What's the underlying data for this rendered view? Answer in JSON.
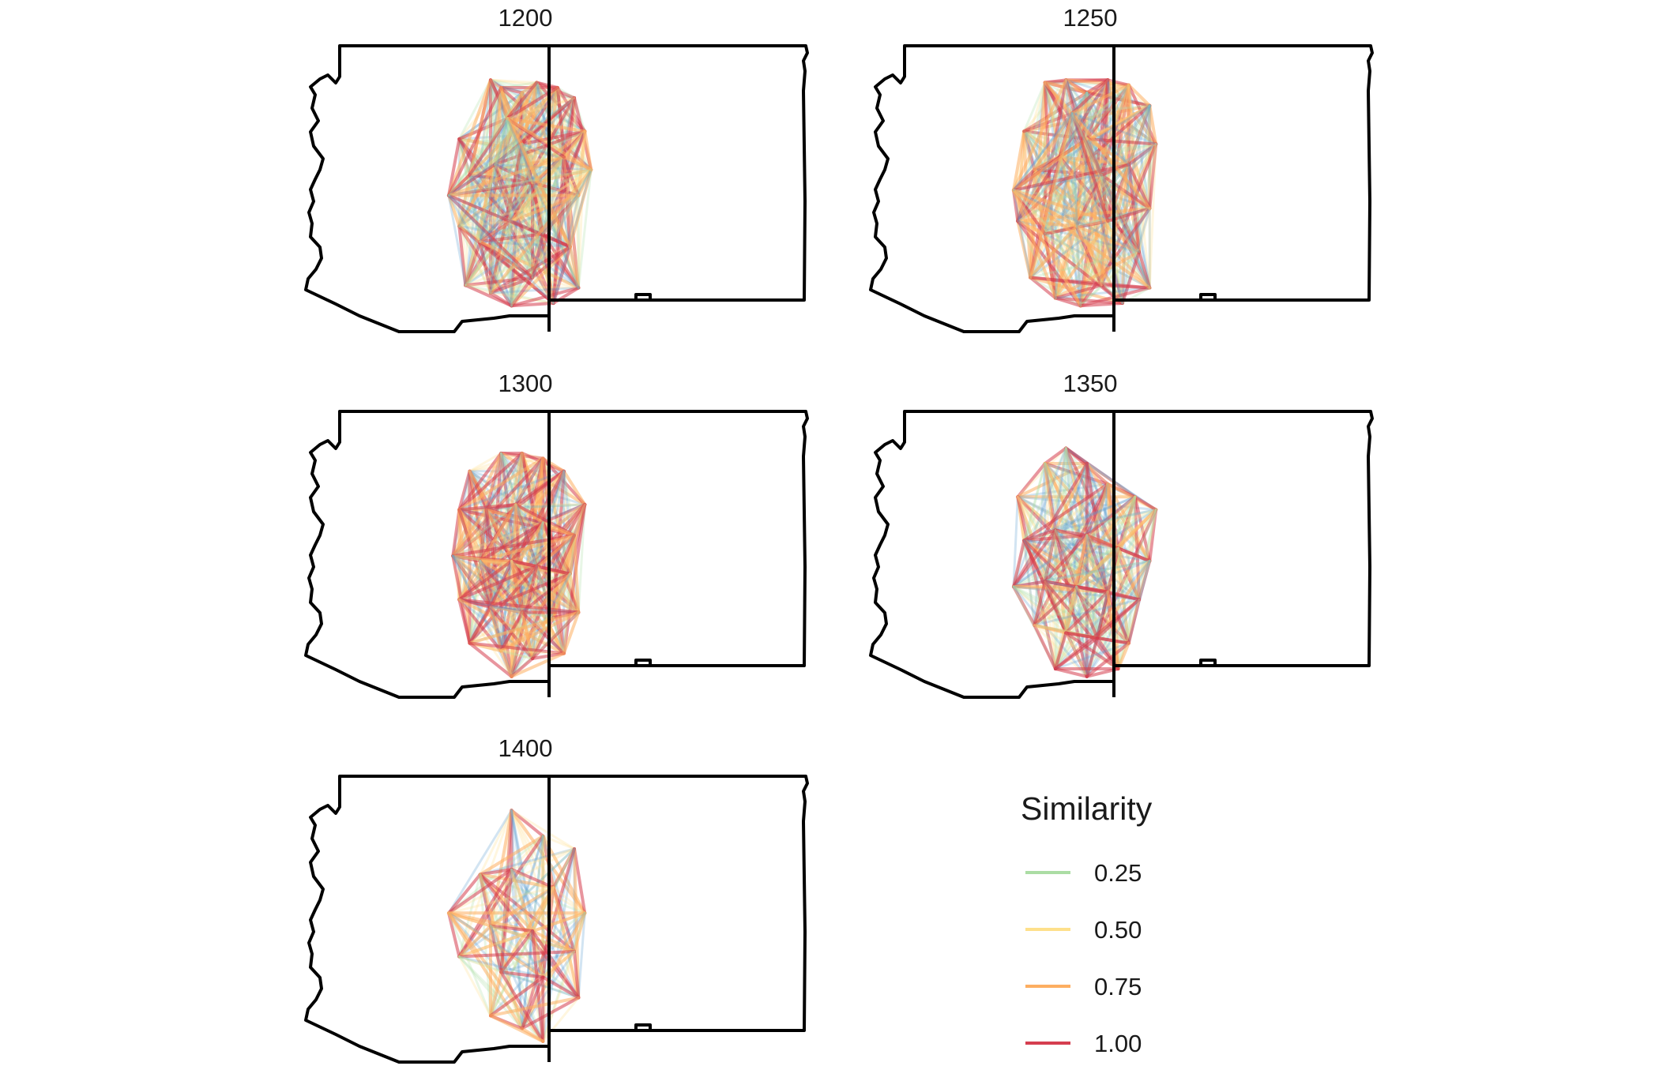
{
  "panels": [
    {
      "title": "1200",
      "sites": [
        [
          0.25,
          0.28
        ],
        [
          0.4,
          0.05
        ],
        [
          0.45,
          0.08
        ],
        [
          0.55,
          0.1
        ],
        [
          0.62,
          0.06
        ],
        [
          0.72,
          0.08
        ],
        [
          0.8,
          0.12
        ],
        [
          0.85,
          0.25
        ],
        [
          0.3,
          0.42
        ],
        [
          0.42,
          0.38
        ],
        [
          0.55,
          0.3
        ],
        [
          0.6,
          0.45
        ],
        [
          0.75,
          0.35
        ],
        [
          0.82,
          0.5
        ],
        [
          0.25,
          0.62
        ],
        [
          0.35,
          0.68
        ],
        [
          0.5,
          0.6
        ],
        [
          0.65,
          0.65
        ],
        [
          0.78,
          0.7
        ],
        [
          0.28,
          0.85
        ],
        [
          0.4,
          0.88
        ],
        [
          0.5,
          0.93
        ],
        [
          0.6,
          0.82
        ],
        [
          0.7,
          0.92
        ],
        [
          0.82,
          0.86
        ],
        [
          0.2,
          0.5
        ],
        [
          0.88,
          0.4
        ],
        [
          0.48,
          0.2
        ]
      ]
    },
    {
      "title": "1250",
      "sites": [
        [
          0.25,
          0.25
        ],
        [
          0.35,
          0.06
        ],
        [
          0.45,
          0.05
        ],
        [
          0.55,
          0.1
        ],
        [
          0.65,
          0.05
        ],
        [
          0.75,
          0.07
        ],
        [
          0.85,
          0.15
        ],
        [
          0.88,
          0.3
        ],
        [
          0.3,
          0.4
        ],
        [
          0.42,
          0.35
        ],
        [
          0.55,
          0.28
        ],
        [
          0.62,
          0.42
        ],
        [
          0.75,
          0.38
        ],
        [
          0.85,
          0.55
        ],
        [
          0.22,
          0.6
        ],
        [
          0.35,
          0.65
        ],
        [
          0.5,
          0.62
        ],
        [
          0.65,
          0.6
        ],
        [
          0.8,
          0.72
        ],
        [
          0.28,
          0.82
        ],
        [
          0.4,
          0.9
        ],
        [
          0.52,
          0.93
        ],
        [
          0.62,
          0.85
        ],
        [
          0.72,
          0.92
        ],
        [
          0.85,
          0.86
        ],
        [
          0.2,
          0.48
        ],
        [
          0.48,
          0.18
        ]
      ]
    },
    {
      "title": "1300",
      "sites": [
        [
          0.3,
          0.15
        ],
        [
          0.45,
          0.08
        ],
        [
          0.55,
          0.08
        ],
        [
          0.65,
          0.1
        ],
        [
          0.75,
          0.15
        ],
        [
          0.85,
          0.28
        ],
        [
          0.25,
          0.3
        ],
        [
          0.38,
          0.3
        ],
        [
          0.52,
          0.28
        ],
        [
          0.65,
          0.35
        ],
        [
          0.8,
          0.4
        ],
        [
          0.22,
          0.48
        ],
        [
          0.35,
          0.5
        ],
        [
          0.5,
          0.5
        ],
        [
          0.62,
          0.52
        ],
        [
          0.78,
          0.55
        ],
        [
          0.25,
          0.65
        ],
        [
          0.4,
          0.68
        ],
        [
          0.55,
          0.7
        ],
        [
          0.7,
          0.72
        ],
        [
          0.82,
          0.7
        ],
        [
          0.3,
          0.82
        ],
        [
          0.45,
          0.85
        ],
        [
          0.6,
          0.88
        ],
        [
          0.75,
          0.86
        ],
        [
          0.5,
          0.95
        ]
      ]
    },
    {
      "title": "1350",
      "sites": [
        [
          0.22,
          0.25
        ],
        [
          0.35,
          0.12
        ],
        [
          0.45,
          0.06
        ],
        [
          0.55,
          0.12
        ],
        [
          0.65,
          0.2
        ],
        [
          0.78,
          0.25
        ],
        [
          0.88,
          0.3
        ],
        [
          0.25,
          0.42
        ],
        [
          0.4,
          0.38
        ],
        [
          0.55,
          0.4
        ],
        [
          0.7,
          0.45
        ],
        [
          0.85,
          0.5
        ],
        [
          0.2,
          0.6
        ],
        [
          0.35,
          0.58
        ],
        [
          0.5,
          0.6
        ],
        [
          0.65,
          0.62
        ],
        [
          0.8,
          0.65
        ],
        [
          0.3,
          0.75
        ],
        [
          0.45,
          0.78
        ],
        [
          0.6,
          0.8
        ],
        [
          0.75,
          0.82
        ],
        [
          0.4,
          0.92
        ],
        [
          0.55,
          0.95
        ],
        [
          0.7,
          0.92
        ]
      ]
    },
    {
      "title": "1400",
      "sites": [
        [
          0.5,
          0.05
        ],
        [
          0.65,
          0.15
        ],
        [
          0.8,
          0.2
        ],
        [
          0.35,
          0.3
        ],
        [
          0.5,
          0.28
        ],
        [
          0.7,
          0.35
        ],
        [
          0.85,
          0.45
        ],
        [
          0.2,
          0.45
        ],
        [
          0.4,
          0.5
        ],
        [
          0.6,
          0.52
        ],
        [
          0.8,
          0.6
        ],
        [
          0.25,
          0.62
        ],
        [
          0.45,
          0.68
        ],
        [
          0.65,
          0.7
        ],
        [
          0.82,
          0.78
        ],
        [
          0.4,
          0.85
        ],
        [
          0.55,
          0.9
        ],
        [
          0.65,
          0.95
        ]
      ]
    }
  ],
  "legend": {
    "title": "Similarity",
    "entries": [
      {
        "label": "0.25",
        "color": "#abdda4"
      },
      {
        "label": "0.50",
        "color": "#fee08b"
      },
      {
        "label": "0.75",
        "color": "#fdae61"
      },
      {
        "label": "1.00",
        "color": "#d53e4f"
      }
    ]
  },
  "colors": {
    "low": "#5e9fd0",
    "outline": "#000000"
  }
}
